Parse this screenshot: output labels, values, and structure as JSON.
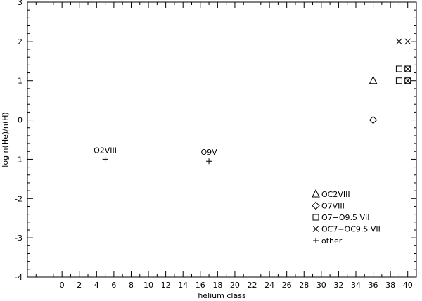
{
  "chart_data": {
    "type": "scatter",
    "xlabel": "helium class",
    "ylabel": "log n(He)/n(H)",
    "xlim": [
      -4,
      41
    ],
    "ylim": [
      -4,
      3
    ],
    "xticks": [
      0,
      2,
      4,
      6,
      8,
      10,
      12,
      14,
      16,
      18,
      20,
      22,
      24,
      26,
      28,
      30,
      32,
      34,
      36,
      38,
      40
    ],
    "yticks": [
      -4,
      -3,
      -2,
      -1,
      0,
      1,
      2,
      3
    ],
    "grid": false,
    "legend_position": "bottom-right",
    "series": [
      {
        "name": "OC2VIII",
        "marker": "triangle",
        "points": [
          {
            "x": 36,
            "y": 1
          }
        ]
      },
      {
        "name": "O7VIII",
        "marker": "diamond",
        "points": [
          {
            "x": 36,
            "y": 0
          }
        ]
      },
      {
        "name": "O7−O9.5 VII",
        "marker": "square",
        "points": [
          {
            "x": 39,
            "y": 1.3
          },
          {
            "x": 39,
            "y": 1
          },
          {
            "x": 40,
            "y": 1.3
          },
          {
            "x": 40,
            "y": 1
          }
        ]
      },
      {
        "name": "OC7−OC9.5 VII",
        "marker": "cross",
        "points": [
          {
            "x": 39,
            "y": 2
          },
          {
            "x": 40,
            "y": 2
          },
          {
            "x": 40,
            "y": 1.3
          },
          {
            "x": 40,
            "y": 1
          }
        ]
      },
      {
        "name": "other",
        "marker": "plus",
        "points": [
          {
            "x": 5,
            "y": -1
          },
          {
            "x": 17,
            "y": -1.05
          }
        ]
      }
    ],
    "annotations": [
      {
        "text": "O2VIII",
        "x": 5,
        "y": -1
      },
      {
        "text": "O9V",
        "x": 17,
        "y": -1.05
      }
    ]
  }
}
